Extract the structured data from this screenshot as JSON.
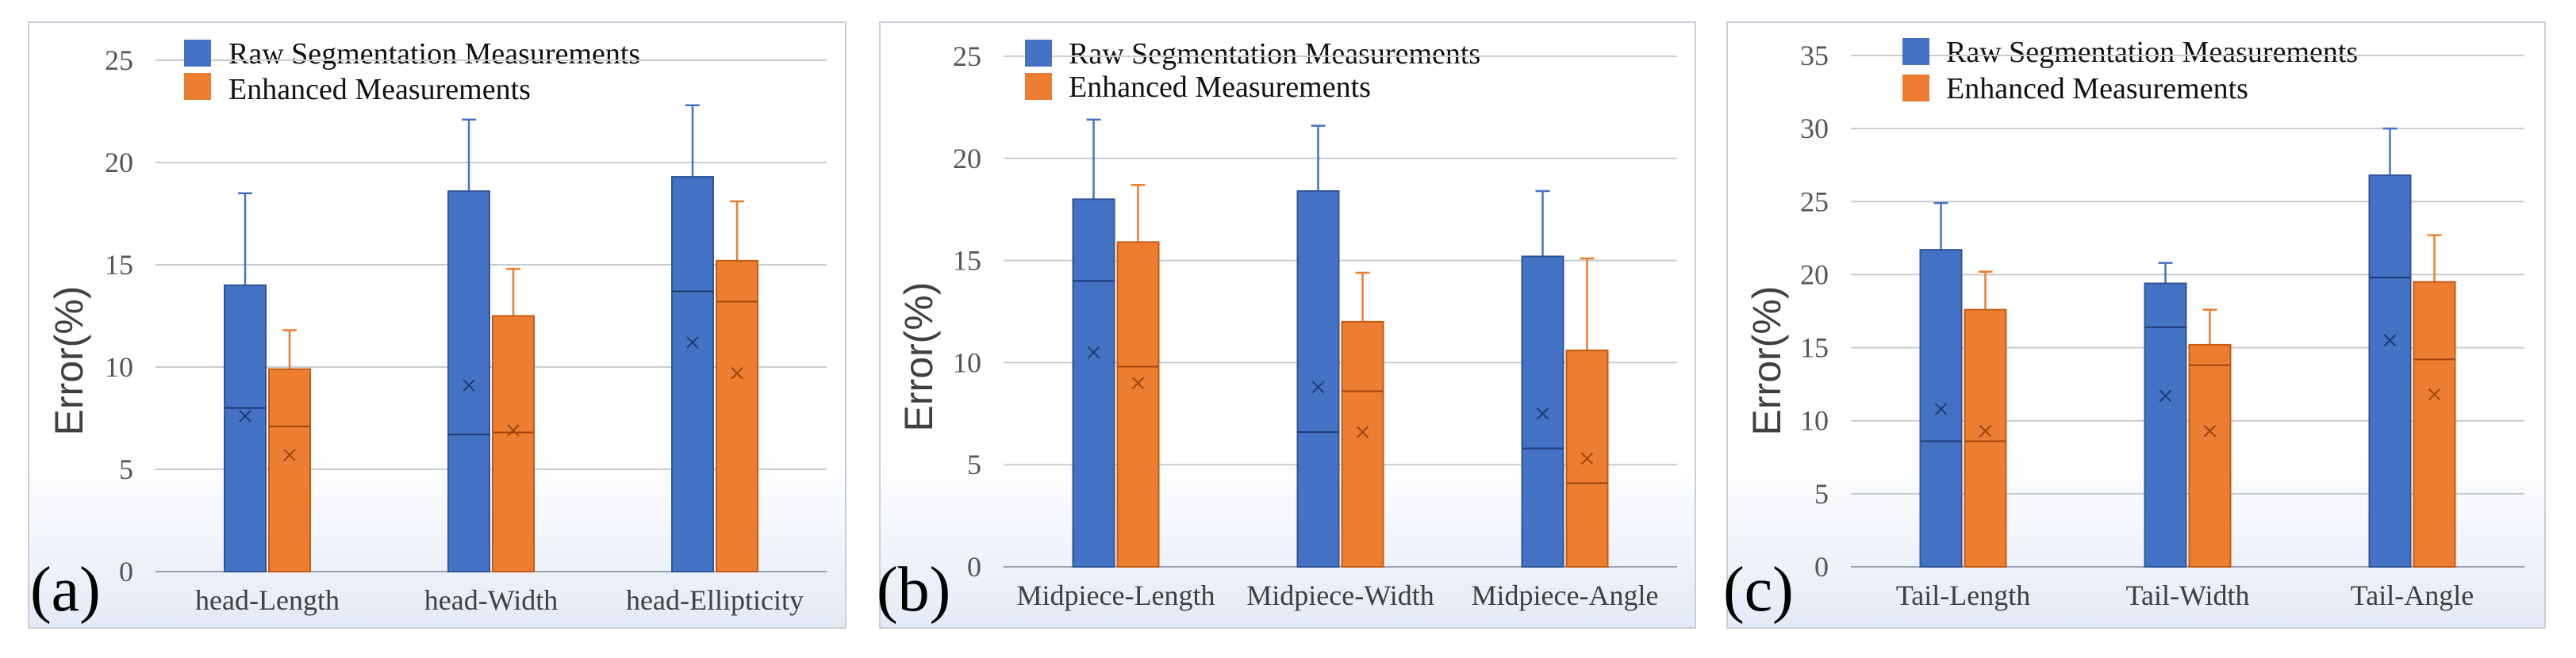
{
  "colors": {
    "raw": "#4472C4",
    "enhanced": "#ED7D31",
    "panel_bg_top": "#ffffff",
    "panel_bg_bottom": "#e6ecf6"
  },
  "chart_data": [
    {
      "type": "bar",
      "panel_label": "(a)",
      "ylabel": "Error(%)",
      "ylim": [
        0,
        25
      ],
      "yticks": [
        "0",
        "5",
        "10",
        "15",
        "20",
        "25"
      ],
      "categories": [
        "head-Length",
        "head-Width",
        "head-Ellipticity"
      ],
      "series": [
        {
          "name": "Raw Segmentation Measurements",
          "values": [
            14.0,
            18.6,
            19.3
          ],
          "error_top": [
            18.5,
            22.1,
            22.8
          ],
          "median": [
            8.0,
            6.7,
            13.7
          ],
          "mean": [
            7.6,
            9.1,
            11.2
          ]
        },
        {
          "name": "Enhanced Measurements",
          "values": [
            9.9,
            12.5,
            15.2
          ],
          "error_top": [
            11.8,
            14.8,
            18.1
          ],
          "median": [
            7.1,
            6.8,
            13.2
          ],
          "mean": [
            5.7,
            6.9,
            9.7
          ]
        }
      ]
    },
    {
      "type": "bar",
      "panel_label": "(b)",
      "ylabel": "Error(%)",
      "ylim": [
        0,
        25
      ],
      "yticks": [
        "0",
        "5",
        "10",
        "15",
        "20",
        "25"
      ],
      "categories": [
        "Midpiece-Length",
        "Midpiece-Width",
        "Midpiece-Angle"
      ],
      "series": [
        {
          "name": "Raw Segmentation Measurements",
          "values": [
            18.0,
            18.4,
            15.2
          ],
          "error_top": [
            21.9,
            21.6,
            18.4
          ],
          "median": [
            14.0,
            6.6,
            5.8
          ],
          "mean": [
            10.5,
            8.8,
            7.5
          ]
        },
        {
          "name": "Enhanced Measurements",
          "values": [
            15.9,
            12.0,
            10.6
          ],
          "error_top": [
            18.7,
            14.4,
            15.1
          ],
          "median": [
            9.8,
            8.6,
            4.1
          ],
          "mean": [
            9.0,
            6.6,
            5.3
          ]
        }
      ]
    },
    {
      "type": "bar",
      "panel_label": "(c)",
      "ylabel": "Error(%)",
      "ylim": [
        0,
        35
      ],
      "yticks": [
        "0",
        "5",
        "10",
        "15",
        "20",
        "25",
        "30",
        "35"
      ],
      "categories": [
        "Tail-Length",
        "Tail-Width",
        "Tail-Angle"
      ],
      "series": [
        {
          "name": "Raw Segmentation Measurements",
          "values": [
            21.7,
            19.4,
            26.8
          ],
          "error_top": [
            24.9,
            20.8,
            30.0
          ],
          "median": [
            8.6,
            16.4,
            19.8
          ],
          "mean": [
            10.8,
            11.7,
            15.5
          ]
        },
        {
          "name": "Enhanced Measurements",
          "values": [
            17.6,
            15.2,
            19.5
          ],
          "error_top": [
            20.2,
            17.6,
            22.7
          ],
          "median": [
            8.6,
            13.8,
            14.2
          ],
          "mean": [
            9.3,
            9.3,
            11.8
          ]
        }
      ]
    }
  ]
}
